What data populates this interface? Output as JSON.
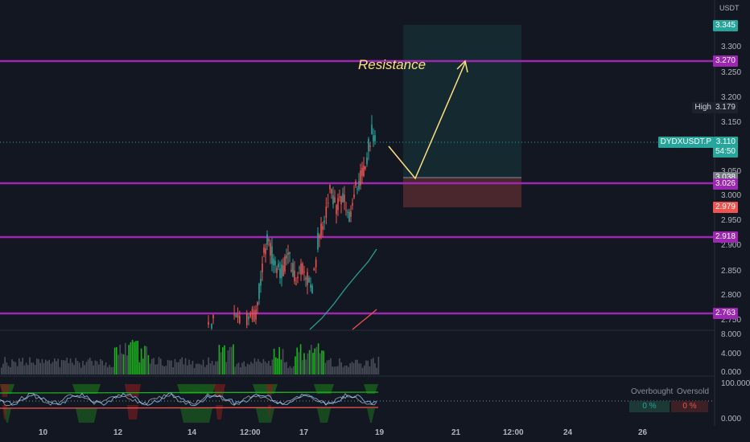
{
  "header": {
    "currency": "USDT"
  },
  "annotation": {
    "resistance": "Resistance"
  },
  "price_ticks": [
    "3.300",
    "3.250",
    "3.200",
    "3.150",
    "3.050",
    "3.000",
    "2.950",
    "2.900",
    "2.850",
    "2.800",
    "2.750"
  ],
  "volume_ticks": [
    "8.000",
    "4.000",
    "0.000"
  ],
  "osc_ticks": [
    "100.000",
    "0.000"
  ],
  "date_ticks": [
    "10",
    "12",
    "14",
    "12:00",
    "17",
    "19",
    "21",
    "12:00",
    "24",
    "26"
  ],
  "tags": {
    "target": "3.345",
    "resistance": "3.270",
    "high_label": "High",
    "high_value": "3.179",
    "symbol": "DYDXUSDT.P",
    "last_price": "3.110",
    "countdown": "54:50",
    "entry": "3.038",
    "support1": "3.026",
    "stop": "2.979",
    "support2": "2.918",
    "support3": "2.763"
  },
  "oscillator_panel": {
    "overbought_label": "Overbought",
    "oversold_label": "Oversold",
    "overbought_value": "0 %",
    "oversold_value": "0 %"
  },
  "colors": {
    "background": "#131722",
    "level_line": "#9c27b0",
    "bull": "#26a69a",
    "bear": "#ef5350",
    "annotation": "#ffe082"
  }
}
